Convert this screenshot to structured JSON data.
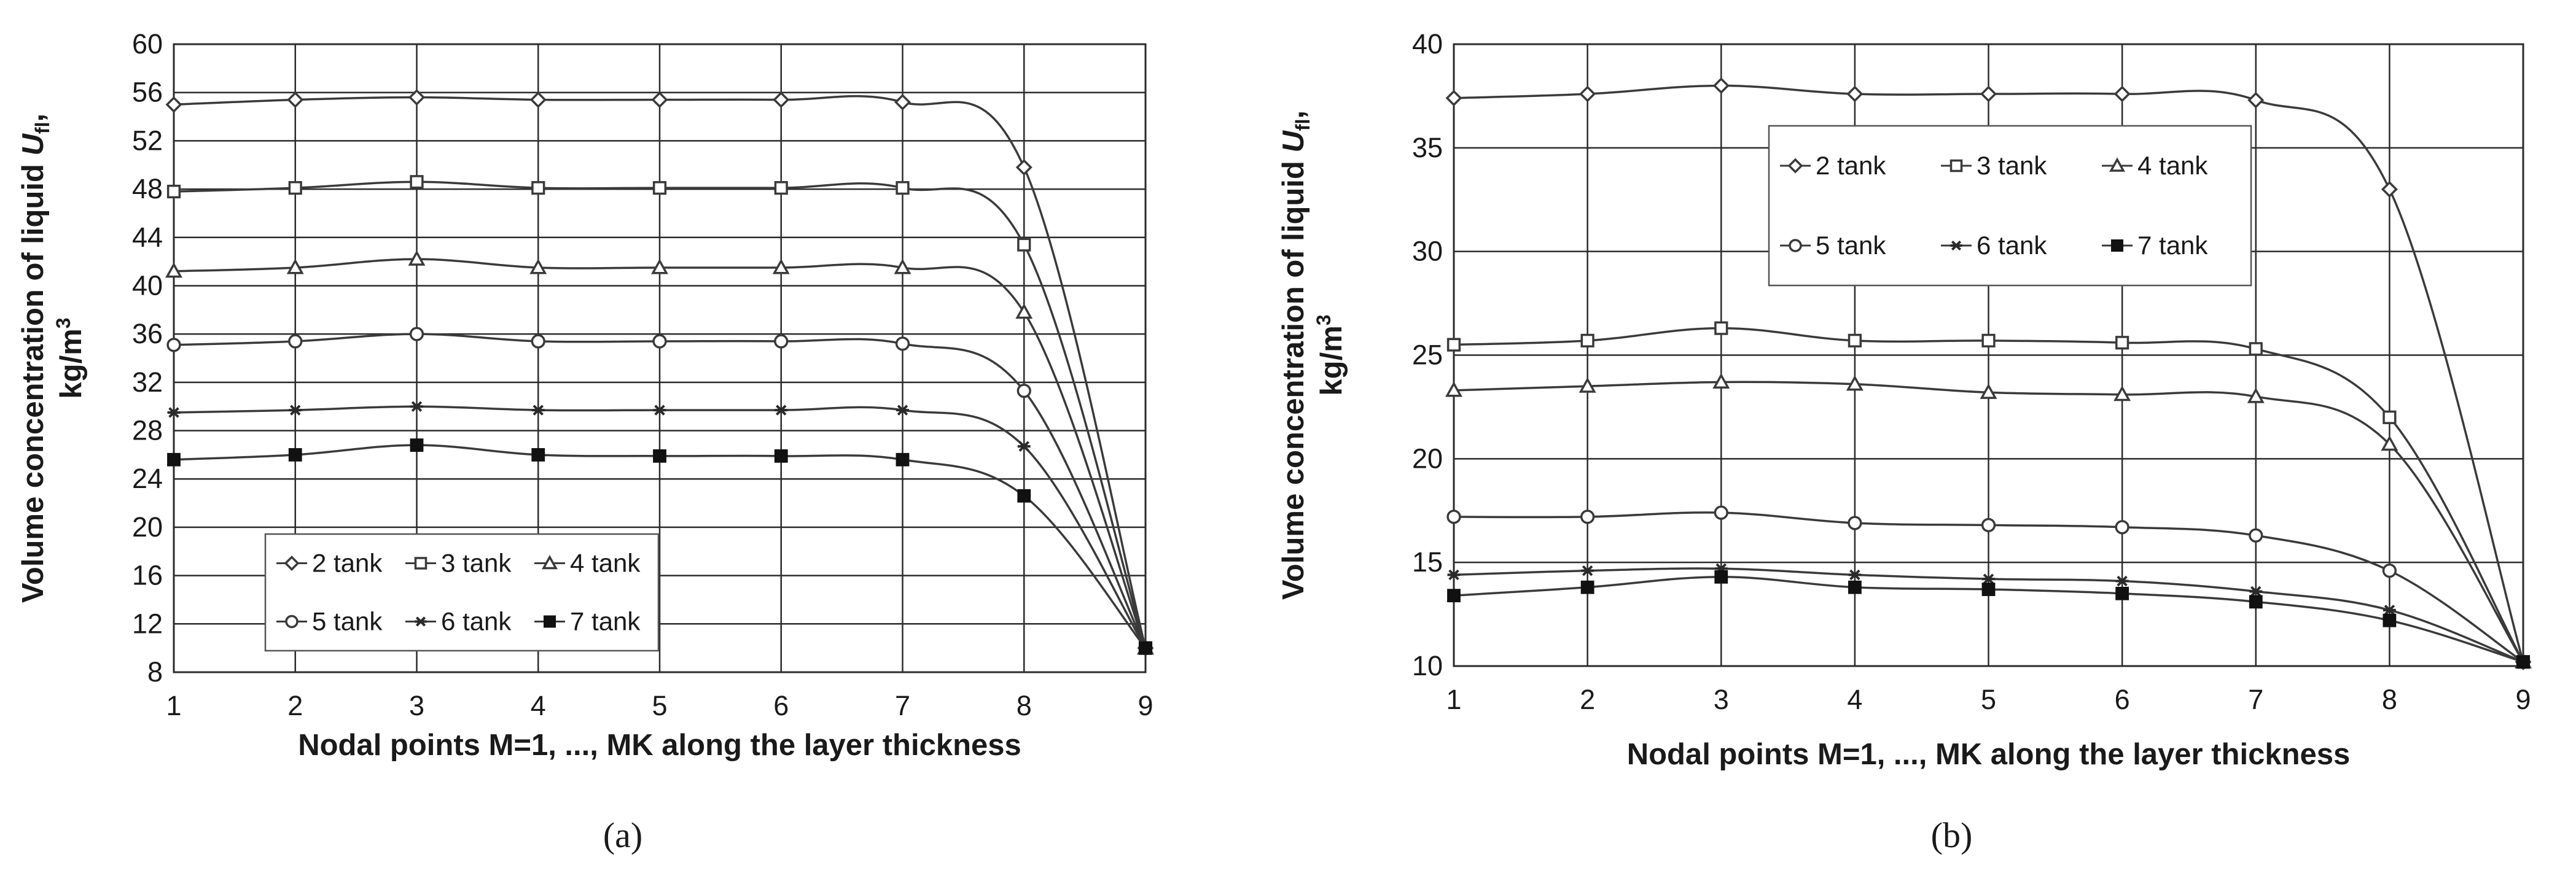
{
  "chart_data": [
    {
      "type": "line",
      "panel_label": "(a)",
      "panel_letter": "a",
      "ylabel_parts": [
        "Volume concentration of liquid ",
        "U",
        "fl",
        ","
      ],
      "ylabel_line2": [
        "kg/m",
        "3"
      ],
      "xlabel": "Nodal points M=1, ..., MK along the layer thickness",
      "ylim": [
        8,
        60
      ],
      "yticks": [
        "8",
        "12",
        "16",
        "20",
        "24",
        "28",
        "32",
        "36",
        "40",
        "44",
        "48",
        "52",
        "56",
        "60"
      ],
      "xticks": [
        "1",
        "2",
        "3",
        "4",
        "5",
        "6",
        "7",
        "8",
        "9"
      ],
      "grid": true,
      "legend_position": "bottom-left",
      "x": [
        1,
        2,
        3,
        4,
        5,
        6,
        7,
        8,
        9
      ],
      "series": [
        {
          "name": "2 tank",
          "marker": "diamond",
          "values": [
            55,
            55.4,
            55.6,
            55.4,
            55.4,
            55.4,
            55.2,
            49.8,
            10
          ]
        },
        {
          "name": "3 tank",
          "marker": "square",
          "values": [
            47.8,
            48.1,
            48.6,
            48.1,
            48.1,
            48.1,
            48.1,
            43.4,
            10
          ]
        },
        {
          "name": "4 tank",
          "marker": "triangle",
          "values": [
            41.2,
            41.5,
            42.2,
            41.5,
            41.5,
            41.5,
            41.5,
            37.8,
            10
          ]
        },
        {
          "name": "5 tank",
          "marker": "circle",
          "values": [
            35.1,
            35.4,
            36,
            35.4,
            35.4,
            35.4,
            35.2,
            31.3,
            10
          ]
        },
        {
          "name": "6 tank",
          "marker": "star",
          "values": [
            29.5,
            29.7,
            30,
            29.7,
            29.7,
            29.7,
            29.7,
            26.7,
            10
          ]
        },
        {
          "name": "7 tank",
          "marker": "filled-square",
          "values": [
            25.6,
            26,
            26.8,
            26,
            25.9,
            25.9,
            25.6,
            22.6,
            10
          ]
        }
      ]
    },
    {
      "type": "line",
      "panel_label": "(b)",
      "panel_letter": "b",
      "ylabel_parts": [
        "Volume concentration of liquid ",
        "U",
        "fl",
        ","
      ],
      "ylabel_line2": [
        "kg/m",
        "3"
      ],
      "xlabel": "Nodal points M=1, ..., MK along the layer thickness",
      "ylim": [
        10,
        40
      ],
      "yticks": [
        "10",
        "15",
        "20",
        "25",
        "30",
        "35",
        "40"
      ],
      "xticks": [
        "1",
        "2",
        "3",
        "4",
        "5",
        "6",
        "7",
        "8",
        "9"
      ],
      "grid": true,
      "legend_position": "top-center",
      "x": [
        1,
        2,
        3,
        4,
        5,
        6,
        7,
        8,
        9
      ],
      "series": [
        {
          "name": "2 tank",
          "marker": "diamond",
          "values": [
            37.4,
            37.6,
            38,
            37.6,
            37.6,
            37.6,
            37.3,
            33,
            10.2
          ]
        },
        {
          "name": "3 tank",
          "marker": "square",
          "values": [
            25.5,
            25.7,
            26.3,
            25.7,
            25.7,
            25.6,
            25.3,
            22,
            10.2
          ]
        },
        {
          "name": "4 tank",
          "marker": "triangle",
          "values": [
            23.3,
            23.5,
            23.7,
            23.6,
            23.2,
            23.1,
            23,
            20.7,
            10.2
          ]
        },
        {
          "name": "5 tank",
          "marker": "circle",
          "values": [
            17.2,
            17.2,
            17.4,
            16.9,
            16.8,
            16.7,
            16.3,
            14.6,
            10.2
          ]
        },
        {
          "name": "6 tank",
          "marker": "star",
          "values": [
            14.4,
            14.6,
            14.7,
            14.4,
            14.2,
            14.1,
            13.6,
            12.7,
            10.2
          ]
        },
        {
          "name": "7 tank",
          "marker": "filled-square",
          "values": [
            13.4,
            13.8,
            14.3,
            13.8,
            13.7,
            13.5,
            13.1,
            12.2,
            10.2
          ]
        }
      ]
    }
  ]
}
